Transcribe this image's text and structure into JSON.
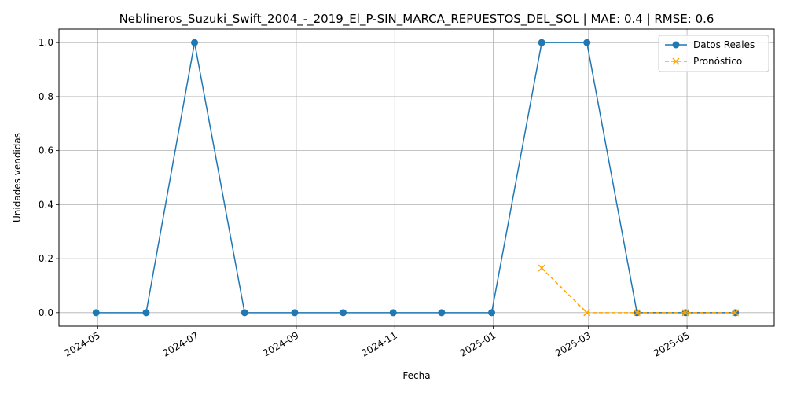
{
  "chart_data": {
    "type": "line",
    "title": "Neblineros_Suzuki_Swift_2004_-_2019_El_P-SIN_MARCA_REPUESTOS_DEL_SOL | MAE: 0.4 | RMSE: 0.6",
    "xlabel": "Fecha",
    "ylabel": "Unidades vendidas",
    "xlim": [
      "2024-04-07",
      "2025-06-24"
    ],
    "ylim": [
      -0.05,
      1.05
    ],
    "x_ticks": [
      "2024-05-01",
      "2024-07-01",
      "2024-09-01",
      "2024-11-01",
      "2025-01-01",
      "2025-03-01",
      "2025-05-01"
    ],
    "x_tick_labels": [
      "2024-05",
      "2024-07",
      "2024-09",
      "2024-11",
      "2025-01",
      "2025-03",
      "2025-05"
    ],
    "y_ticks": [
      0.0,
      0.2,
      0.4,
      0.6,
      0.8,
      1.0
    ],
    "y_tick_labels": [
      "0.0",
      "0.2",
      "0.4",
      "0.6",
      "0.8",
      "1.0"
    ],
    "grid": true,
    "legend_position": "top-right",
    "series": [
      {
        "name": "Datos Reales",
        "color": "#1f77b4",
        "marker": "circle",
        "linestyle": "solid",
        "points": [
          {
            "x": "2024-04-30",
            "y": 0
          },
          {
            "x": "2024-05-31",
            "y": 0
          },
          {
            "x": "2024-06-30",
            "y": 1
          },
          {
            "x": "2024-07-31",
            "y": 0
          },
          {
            "x": "2024-08-31",
            "y": 0
          },
          {
            "x": "2024-09-30",
            "y": 0
          },
          {
            "x": "2024-10-31",
            "y": 0
          },
          {
            "x": "2024-11-30",
            "y": 0
          },
          {
            "x": "2024-12-31",
            "y": 0
          },
          {
            "x": "2025-01-31",
            "y": 1
          },
          {
            "x": "2025-02-28",
            "y": 1
          },
          {
            "x": "2025-03-31",
            "y": 0
          },
          {
            "x": "2025-04-30",
            "y": 0
          },
          {
            "x": "2025-05-31",
            "y": 0
          }
        ]
      },
      {
        "name": "Pronóstico",
        "color": "#ffa500",
        "marker": "x",
        "linestyle": "dashed",
        "points": [
          {
            "x": "2025-01-31",
            "y": 0.165
          },
          {
            "x": "2025-02-28",
            "y": 0
          },
          {
            "x": "2025-03-31",
            "y": 0
          },
          {
            "x": "2025-04-30",
            "y": 0
          },
          {
            "x": "2025-05-31",
            "y": 0
          }
        ]
      }
    ]
  }
}
